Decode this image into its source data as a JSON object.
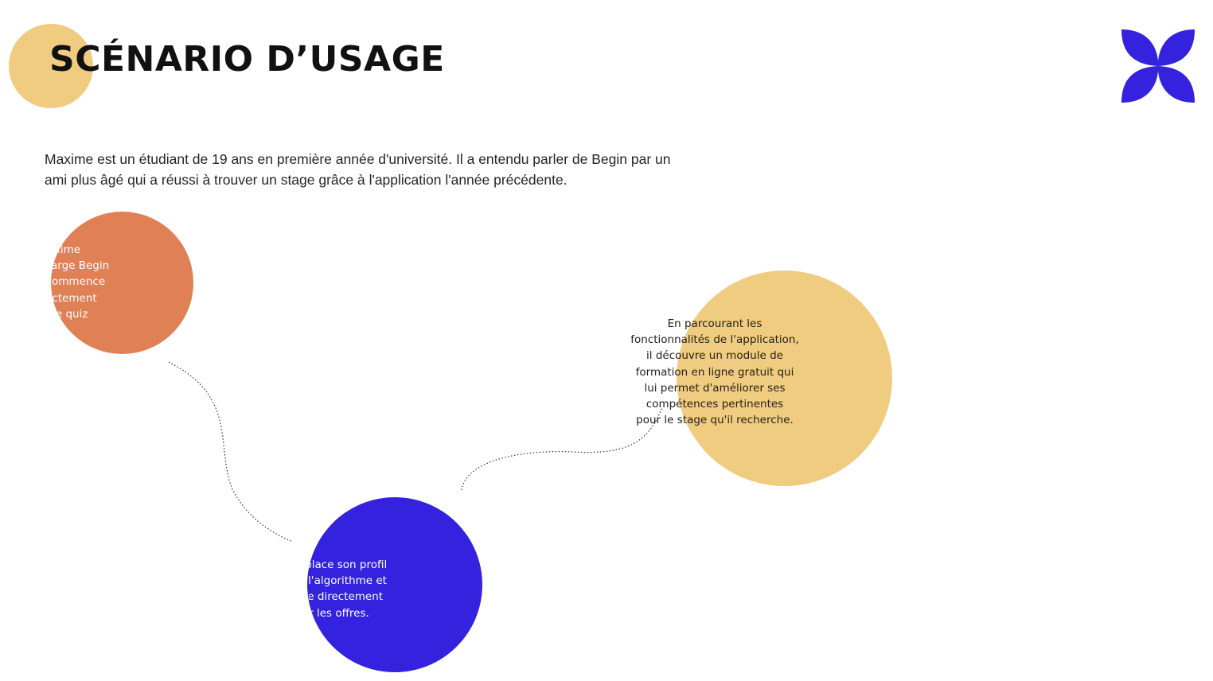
{
  "header": {
    "title": "SCÉNARIO D’USAGE",
    "logo_icon": "four-petal-flower-icon",
    "logo_color": "#3422DE",
    "title_dot_color": "#EFCC7F"
  },
  "intro": {
    "text": "Maxime est un étudiant de 19 ans en première année d'université. Il a entendu parler de Begin par un ami plus âgé qui a réussi à trouver un stage grâce à l'application l'année précédente."
  },
  "steps": [
    {
      "color": "#DF8155",
      "lines": [
        "Maxime",
        "charge Begin",
        "t commence",
        "irectement",
        "ar le quiz"
      ]
    },
    {
      "color": "#3422DE",
      "lines": [
        "en place son profil",
        "e à l'algorithme et",
        "ence directement",
        "ourir les offres."
      ]
    },
    {
      "color": "#EFCC7F",
      "lines": [
        "En parcourant les",
        "fonctionnalités de l'application,",
        "il découvre un module de",
        "formation en ligne gratuit qui",
        "lui permet d'améliorer ses",
        "compétences pertinentes",
        "pour le stage qu'il recherche."
      ]
    }
  ]
}
